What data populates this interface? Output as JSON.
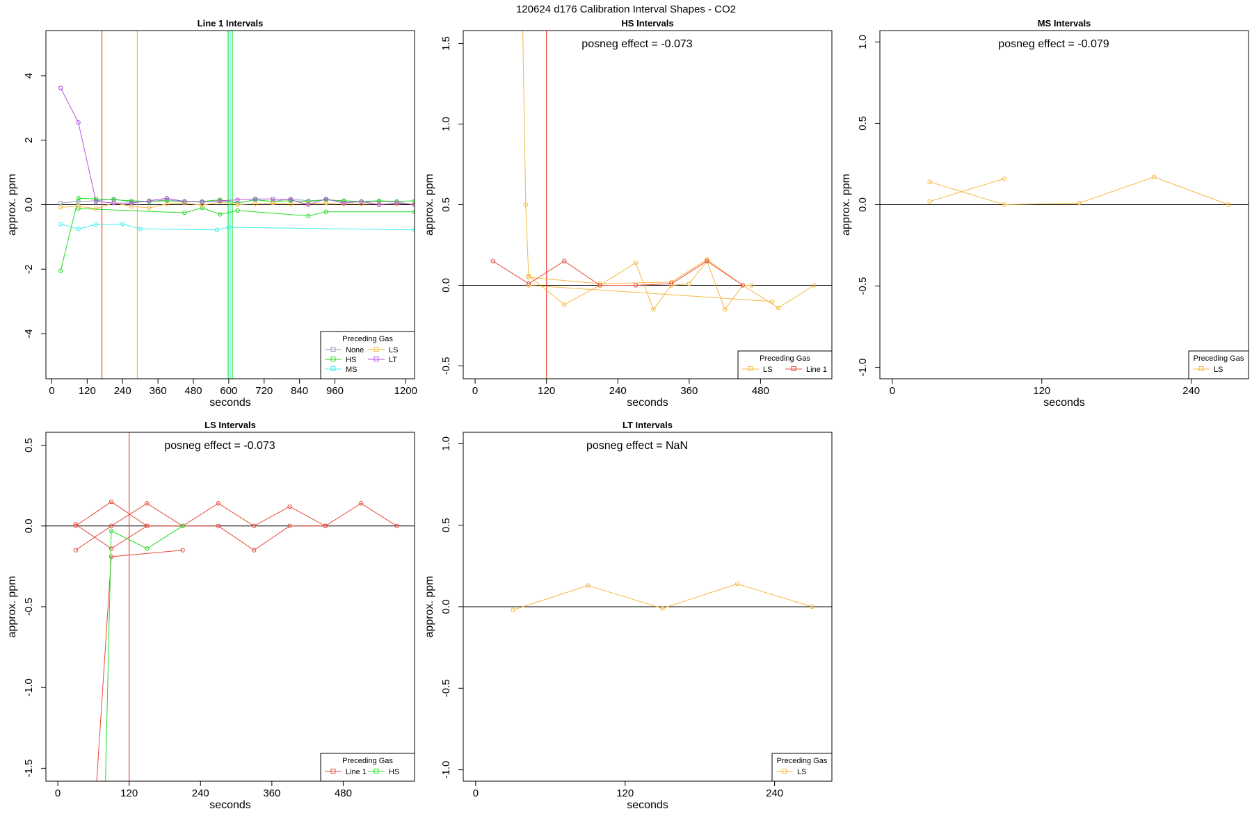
{
  "figure_title": "120624  d176   Calibration Interval Shapes - CO2",
  "colors": {
    "None": "#9a9ab8",
    "HS": "#22dd22",
    "MS": "#44eeee",
    "LS": "#f5b840",
    "LT": "#b050e0",
    "Line 1": "#e84838",
    "axis": "#000000"
  },
  "chart_data": [
    {
      "type": "line",
      "title": "Line 1 Intervals",
      "xlabel": "seconds",
      "ylabel": "approx. ppm",
      "xlim": [
        -20,
        1230
      ],
      "ylim": [
        -5.4,
        5.4
      ],
      "xticks": [
        0,
        120,
        240,
        360,
        480,
        600,
        720,
        840,
        960,
        1200
      ],
      "yticks": [
        -4,
        -2,
        0,
        2,
        4
      ],
      "hline": 0,
      "vlines": [
        {
          "x": 170,
          "series": "Line 1"
        },
        {
          "x": 290,
          "series": "LS"
        },
        {
          "x": 598,
          "series": "HS"
        },
        {
          "x": 612,
          "series": "HS"
        },
        {
          "x": 605,
          "series": "MS"
        }
      ],
      "annotation": "",
      "legend": {
        "title": "Preceding Gas",
        "position": "bottom-right",
        "columns": 2,
        "entries": [
          "None",
          "LS",
          "HS",
          "LT",
          "MS"
        ]
      },
      "series": [
        {
          "name": "None",
          "x": [
            30,
            90,
            150,
            210,
            270,
            330,
            390,
            450,
            510,
            570,
            630,
            690,
            750,
            810,
            870,
            930,
            990,
            1050,
            1110,
            1170,
            1230
          ],
          "y": [
            0.05,
            0.1,
            0.12,
            0.18,
            0.08,
            0.1,
            0.15,
            0.1,
            0.08,
            0.12,
            0.06,
            0.15,
            0.1,
            0.18,
            0.12,
            0.15,
            0.1,
            0.08,
            0.1,
            0.08,
            0.0
          ]
        },
        {
          "name": "HS",
          "x": [
            30,
            90,
            150,
            210,
            270,
            330,
            390,
            450,
            510,
            570,
            630,
            690,
            750,
            810,
            870,
            930,
            990,
            1050,
            1110,
            1170,
            1230
          ],
          "y": [
            -2.05,
            0.2,
            0.18,
            0.15,
            0.12,
            0.1,
            0.12,
            0.08,
            0.1,
            0.15,
            0.05,
            0.15,
            0.1,
            0.12,
            0.1,
            0.15,
            0.12,
            0.1,
            0.12,
            0.1,
            0.12
          ]
        },
        {
          "name": "HS",
          "x": [
            90,
            450,
            510,
            570,
            630,
            870,
            930,
            1230
          ],
          "y": [
            -0.12,
            -0.25,
            -0.1,
            -0.3,
            -0.18,
            -0.35,
            -0.22,
            -0.22
          ]
        },
        {
          "name": "MS",
          "x": [
            30,
            90,
            150,
            240,
            300,
            560,
            600,
            1230
          ],
          "y": [
            -0.6,
            -0.75,
            -0.62,
            -0.6,
            -0.75,
            -0.78,
            -0.7,
            -0.78
          ]
        },
        {
          "name": "LS",
          "x": [
            30,
            90,
            150,
            210,
            270,
            330,
            390,
            450,
            510,
            570,
            630,
            690,
            750,
            810,
            870,
            930,
            990,
            1050,
            1110,
            1170,
            1230
          ],
          "y": [
            -0.08,
            -0.05,
            -0.12,
            0.05,
            -0.05,
            -0.1,
            0.02,
            0.05,
            -0.02,
            0.08,
            0.0,
            0.03,
            0.05,
            0.02,
            0.03,
            0.05,
            0.02,
            0.03,
            0.02,
            0.02,
            0.03
          ]
        },
        {
          "name": "LT",
          "x": [
            30,
            90,
            150,
            210,
            270,
            330,
            390,
            450,
            510,
            570,
            630,
            690,
            750,
            810,
            870,
            930,
            990,
            1050,
            1110,
            1170,
            1230
          ],
          "y": [
            3.62,
            2.55,
            0.1,
            0.05,
            0.05,
            0.12,
            0.2,
            0.1,
            0.08,
            0.12,
            0.15,
            0.18,
            0.18,
            0.15,
            0.0,
            0.18,
            0.05,
            0.1,
            0.0,
            0.05,
            0.0
          ]
        }
      ]
    },
    {
      "type": "line",
      "title": "HS Intervals",
      "xlabel": "seconds",
      "ylabel": "approx. ppm",
      "xlim": [
        -20,
        600
      ],
      "ylim": [
        -0.58,
        1.58
      ],
      "xticks": [
        0,
        120,
        240,
        360,
        480
      ],
      "yticks": [
        -0.5,
        0.0,
        0.5,
        1.0,
        1.5
      ],
      "hline": 0,
      "vlines": [
        {
          "x": 120,
          "series": "Line 1"
        }
      ],
      "annotation": "posneg effect = -0.073",
      "legend": {
        "title": "Preceding Gas",
        "position": "bottom-right",
        "columns": 2,
        "entries": [
          "LS",
          "Line 1"
        ]
      },
      "series": [
        {
          "name": "LS",
          "x": [
            80,
            85,
            90,
            150,
            210,
            270,
            300,
            330,
            360,
            390,
            420,
            450,
            465
          ],
          "y": [
            1.6,
            0.5,
            0.06,
            -0.12,
            0.0,
            0.14,
            -0.15,
            0.0,
            0.01,
            0.15,
            -0.15,
            0.0,
            0.0
          ]
        },
        {
          "name": "LS",
          "x": [
            90,
            210,
            330,
            390,
            450,
            510,
            570
          ],
          "y": [
            0.05,
            0.01,
            0.02,
            0.16,
            0.0,
            -0.14,
            0.0
          ]
        },
        {
          "name": "LS",
          "x": [
            90,
            500
          ],
          "y": [
            0.0,
            -0.1
          ]
        },
        {
          "name": "Line 1",
          "x": [
            30,
            90,
            150,
            210,
            270,
            330,
            390,
            450
          ],
          "y": [
            0.15,
            0.01,
            0.15,
            0.0,
            0.0,
            0.01,
            0.15,
            0.0
          ]
        }
      ]
    },
    {
      "type": "line",
      "title": "MS Intervals",
      "xlabel": "seconds",
      "ylabel": "approx. ppm",
      "xlim": [
        -10,
        286
      ],
      "ylim": [
        -1.07,
        1.07
      ],
      "xticks": [
        0,
        120,
        240
      ],
      "yticks": [
        -1.0,
        -0.5,
        0.0,
        0.5,
        1.0
      ],
      "hline": 0,
      "vlines": [],
      "annotation": "posneg effect = -0.079",
      "legend": {
        "title": "Preceding Gas",
        "position": "bottom-right",
        "columns": 1,
        "entries": [
          "LS"
        ]
      },
      "series": [
        {
          "name": "LS",
          "x": [
            30,
            90,
            150,
            210,
            270
          ],
          "y": [
            0.14,
            0.0,
            0.01,
            0.17,
            0.0
          ]
        },
        {
          "name": "LS",
          "x": [
            30,
            90
          ],
          "y": [
            0.02,
            0.16
          ]
        }
      ]
    },
    {
      "type": "line",
      "title": "LS Intervals",
      "xlabel": "seconds",
      "ylabel": "approx. ppm",
      "xlim": [
        -20,
        600
      ],
      "ylim": [
        -1.58,
        0.58
      ],
      "xticks": [
        0,
        120,
        240,
        360,
        480
      ],
      "yticks": [
        -1.5,
        -1.0,
        -0.5,
        0.0,
        0.5
      ],
      "hline": 0,
      "vlines": [
        {
          "x": 120,
          "series": "Line 1"
        }
      ],
      "annotation": "posneg effect = -0.073",
      "legend": {
        "title": "Preceding Gas",
        "position": "bottom-right",
        "columns": 2,
        "entries": [
          "Line 1",
          "HS"
        ]
      },
      "series": [
        {
          "name": "Line 1",
          "x": [
            30,
            90,
            150,
            210,
            270,
            330,
            390,
            450,
            510,
            570
          ],
          "y": [
            0.0,
            0.15,
            0.0,
            0.0,
            0.14,
            0.0,
            0.12,
            0.0,
            0.14,
            0.0
          ]
        },
        {
          "name": "Line 1",
          "x": [
            30,
            90,
            150,
            210,
            270,
            330,
            390,
            450
          ],
          "y": [
            -0.15,
            0.0,
            0.14,
            0.0,
            0.0,
            -0.15,
            0.0,
            0.0
          ]
        },
        {
          "name": "Line 1",
          "x": [
            30,
            90,
            150
          ],
          "y": [
            0.01,
            -0.14,
            0.0
          ]
        },
        {
          "name": "Line 1",
          "x": [
            65,
            90,
            210
          ],
          "y": [
            -1.6,
            -0.19,
            -0.15
          ]
        },
        {
          "name": "HS",
          "x": [
            80,
            90,
            150,
            210
          ],
          "y": [
            -1.6,
            -0.03,
            -0.14,
            0.0
          ]
        }
      ]
    },
    {
      "type": "line",
      "title": "LT Intervals",
      "xlabel": "seconds",
      "ylabel": "approx. ppm",
      "xlim": [
        -10,
        286
      ],
      "ylim": [
        -1.07,
        1.07
      ],
      "xticks": [
        0,
        120,
        240
      ],
      "yticks": [
        -1.0,
        -0.5,
        0.0,
        0.5,
        1.0
      ],
      "hline": 0,
      "vlines": [],
      "annotation": "posneg effect = NaN",
      "legend": {
        "title": "Preceding Gas",
        "position": "bottom-right",
        "columns": 1,
        "entries": [
          "LS"
        ]
      },
      "series": [
        {
          "name": "LS",
          "x": [
            30,
            90,
            150,
            210,
            270
          ],
          "y": [
            -0.02,
            0.13,
            -0.01,
            0.14,
            0.0
          ]
        }
      ]
    }
  ]
}
